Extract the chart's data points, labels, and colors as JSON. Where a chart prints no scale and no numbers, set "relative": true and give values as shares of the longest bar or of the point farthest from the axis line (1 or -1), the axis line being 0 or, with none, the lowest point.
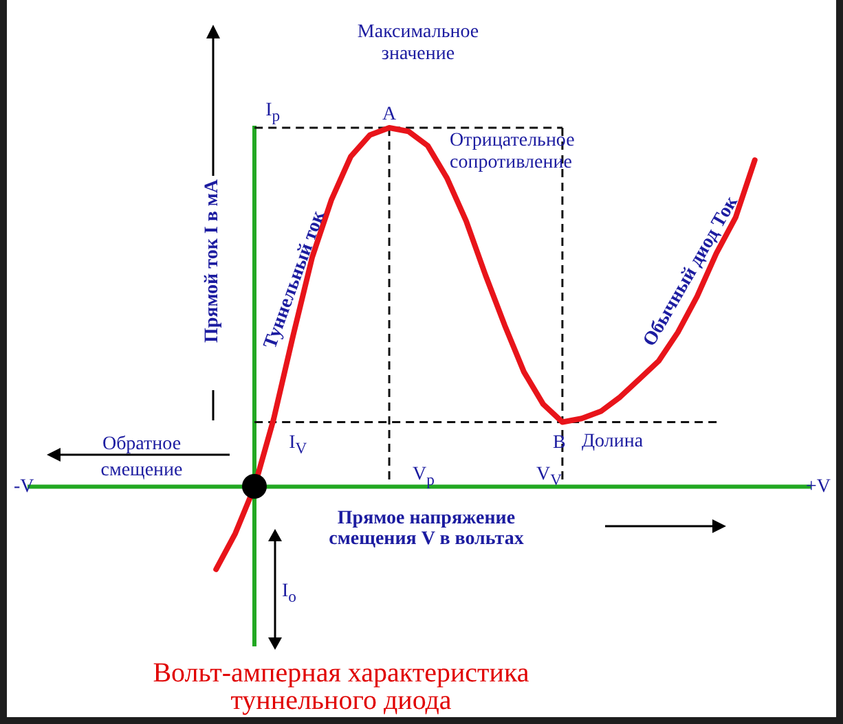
{
  "chart_data": {
    "type": "line",
    "relative": true,
    "title": "Вольт-амперная характеристика туннельного диода",
    "xlabel": "Прямое напряжение смещения V в вольтах",
    "ylabel": "Прямой ток I в мА",
    "legend": false,
    "marker": "none",
    "line_style": "solid",
    "categories": [
      null,
      null,
      null,
      null,
      null,
      null,
      null,
      null,
      null,
      null,
      null,
      null,
      null,
      null,
      null,
      null,
      null,
      null,
      null,
      null,
      null,
      null,
      null,
      null,
      null,
      null,
      null,
      null,
      null
    ],
    "series": [
      {
        "color": "#e8141a",
        "values": [
          -0.23,
          -0.13,
          0,
          0.19,
          0.42,
          0.64,
          0.8,
          0.92,
          0.98,
          1,
          0.99,
          0.95,
          0.86,
          0.74,
          0.59,
          0.45,
          0.32,
          0.23,
          0.18,
          0.19,
          0.21,
          0.25,
          0.3,
          0.35,
          0.43,
          0.53,
          0.65,
          0.75,
          0.91
        ]
      }
    ],
    "ref_lines": [
      {
        "axis": "y",
        "value": 1,
        "label": "I$_{p}$",
        "line_style": "dashed"
      },
      {
        "axis": "y",
        "value": 0.18,
        "label": "I$_{V}$",
        "line_style": "dashed"
      },
      {
        "axis": "y",
        "value": 0,
        "color": "#22a822",
        "line_style": "solid"
      }
    ],
    "annotations": [
      "Максимальное значение",
      "A",
      "Отрицательное сопротивление",
      "Туннельный ток",
      "Обычный диод Ток",
      "B",
      "Долина",
      "Обратное смещение",
      "-V",
      "+V",
      "I$_{o}$",
      "V$_{p}$",
      "V$_{V}$"
    ]
  }
}
